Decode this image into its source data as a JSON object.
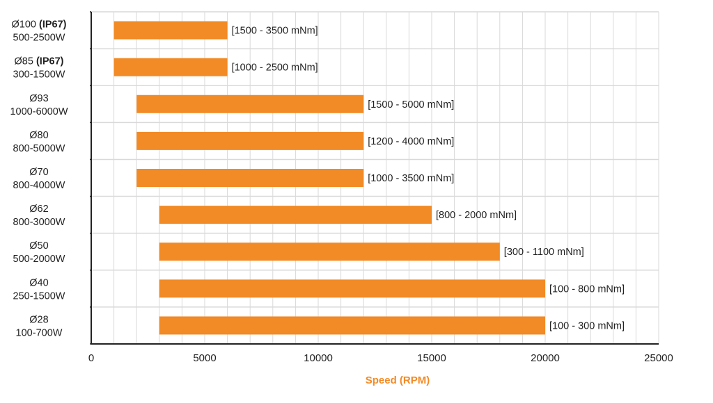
{
  "chart_data": {
    "type": "bar",
    "orientation": "horizontal",
    "categories": [
      {
        "name": "Ø100",
        "tag": "(IP67)",
        "power": "500-2500W"
      },
      {
        "name": "Ø85",
        "tag": "(IP67)",
        "power": "300-1500W"
      },
      {
        "name": "Ø93",
        "tag": "",
        "power": "1000-6000W"
      },
      {
        "name": "Ø80",
        "tag": "",
        "power": "800-5000W"
      },
      {
        "name": "Ø70",
        "tag": "",
        "power": "800-4000W"
      },
      {
        "name": "Ø62",
        "tag": "",
        "power": "800-3000W"
      },
      {
        "name": "Ø50",
        "tag": "",
        "power": "500-2000W"
      },
      {
        "name": "Ø40",
        "tag": "",
        "power": "250-1500W"
      },
      {
        "name": "Ø28",
        "tag": "",
        "power": "100-700W"
      }
    ],
    "ranges": [
      [
        1000,
        6000
      ],
      [
        1000,
        6000
      ],
      [
        2000,
        12000
      ],
      [
        2000,
        12000
      ],
      [
        2000,
        12000
      ],
      [
        3000,
        15000
      ],
      [
        3000,
        18000
      ],
      [
        3000,
        20000
      ],
      [
        3000,
        20000
      ]
    ],
    "data_labels": [
      "[1500 - 3500 mNm]",
      "[1000 - 2500 mNm]",
      "[1500 - 5000 mNm]",
      "[1200 - 4000 mNm]",
      "[1000 - 3500 mNm]",
      "[800 - 2000 mNm]",
      "[300 - 1100 mNm]",
      "[100 - 800 mNm]",
      "[100 - 300 mNm]"
    ],
    "xlabel": "Speed (RPM)",
    "ylabel": "",
    "title": "",
    "xlim": [
      0,
      25000
    ],
    "xticks": [
      0,
      5000,
      10000,
      15000,
      20000,
      25000
    ],
    "grid": true,
    "legend": "none",
    "colors": {
      "bar": "#f28a25",
      "xlabel": "#f28a25",
      "grid": "#d9d9d9",
      "axis": "#222222"
    }
  }
}
